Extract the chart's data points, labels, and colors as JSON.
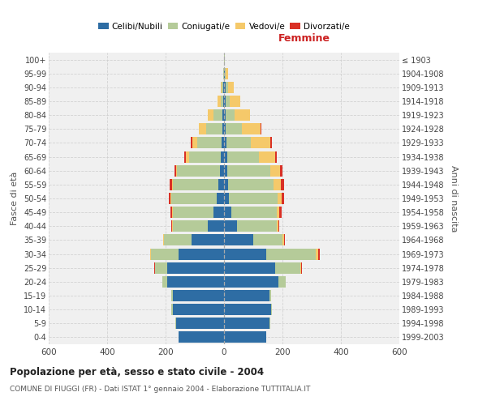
{
  "age_groups": [
    "0-4",
    "5-9",
    "10-14",
    "15-19",
    "20-24",
    "25-29",
    "30-34",
    "35-39",
    "40-44",
    "45-49",
    "50-54",
    "55-59",
    "60-64",
    "65-69",
    "70-74",
    "75-79",
    "80-84",
    "85-89",
    "90-94",
    "95-99",
    "100+"
  ],
  "birth_years": [
    "1999-2003",
    "1994-1998",
    "1989-1993",
    "1984-1988",
    "1979-1983",
    "1974-1978",
    "1969-1973",
    "1964-1968",
    "1959-1963",
    "1954-1958",
    "1949-1953",
    "1944-1948",
    "1939-1943",
    "1934-1938",
    "1929-1933",
    "1924-1928",
    "1919-1923",
    "1914-1918",
    "1909-1913",
    "1904-1908",
    "≤ 1903"
  ],
  "colors": {
    "celibe": "#2E6DA4",
    "coniugato": "#B5CB99",
    "vedovo": "#F5C96A",
    "divorziato": "#D93025"
  },
  "males": {
    "celibe": [
      155,
      165,
      175,
      175,
      195,
      195,
      155,
      110,
      55,
      35,
      25,
      20,
      15,
      10,
      8,
      5,
      5,
      3,
      2,
      0,
      0
    ],
    "coniugato": [
      0,
      2,
      5,
      5,
      15,
      40,
      95,
      95,
      120,
      140,
      155,
      155,
      145,
      110,
      85,
      55,
      30,
      8,
      5,
      2,
      0
    ],
    "vedovo": [
      0,
      0,
      0,
      0,
      2,
      2,
      2,
      2,
      2,
      2,
      2,
      3,
      5,
      10,
      15,
      25,
      20,
      10,
      5,
      2,
      0
    ],
    "divorziato": [
      0,
      0,
      0,
      0,
      0,
      2,
      2,
      2,
      3,
      5,
      8,
      8,
      5,
      5,
      5,
      2,
      0,
      0,
      0,
      0,
      0
    ]
  },
  "females": {
    "nubile": [
      145,
      155,
      160,
      155,
      185,
      175,
      145,
      100,
      45,
      25,
      18,
      15,
      12,
      10,
      8,
      5,
      5,
      5,
      5,
      2,
      0
    ],
    "coniugata": [
      0,
      2,
      5,
      5,
      25,
      85,
      170,
      100,
      135,
      155,
      165,
      155,
      145,
      110,
      85,
      55,
      30,
      15,
      8,
      3,
      2
    ],
    "vedova": [
      0,
      0,
      0,
      0,
      2,
      5,
      8,
      5,
      5,
      8,
      15,
      25,
      35,
      55,
      65,
      65,
      55,
      35,
      20,
      8,
      2
    ],
    "divorziata": [
      0,
      0,
      0,
      0,
      0,
      3,
      5,
      3,
      5,
      8,
      8,
      10,
      8,
      5,
      5,
      2,
      0,
      0,
      0,
      0,
      0
    ]
  },
  "xlim": 600,
  "title": "Popolazione per età, sesso e stato civile - 2004",
  "subtitle": "COMUNE DI FIUGGI (FR) - Dati ISTAT 1° gennaio 2004 - Elaborazione TUTTITALIA.IT",
  "ylabel_left": "Fasce di età",
  "ylabel_right": "Anni di nascita",
  "xlabel_right": "Femmine",
  "bg_color": "#f0f0f0",
  "grid_color": "#cccccc"
}
